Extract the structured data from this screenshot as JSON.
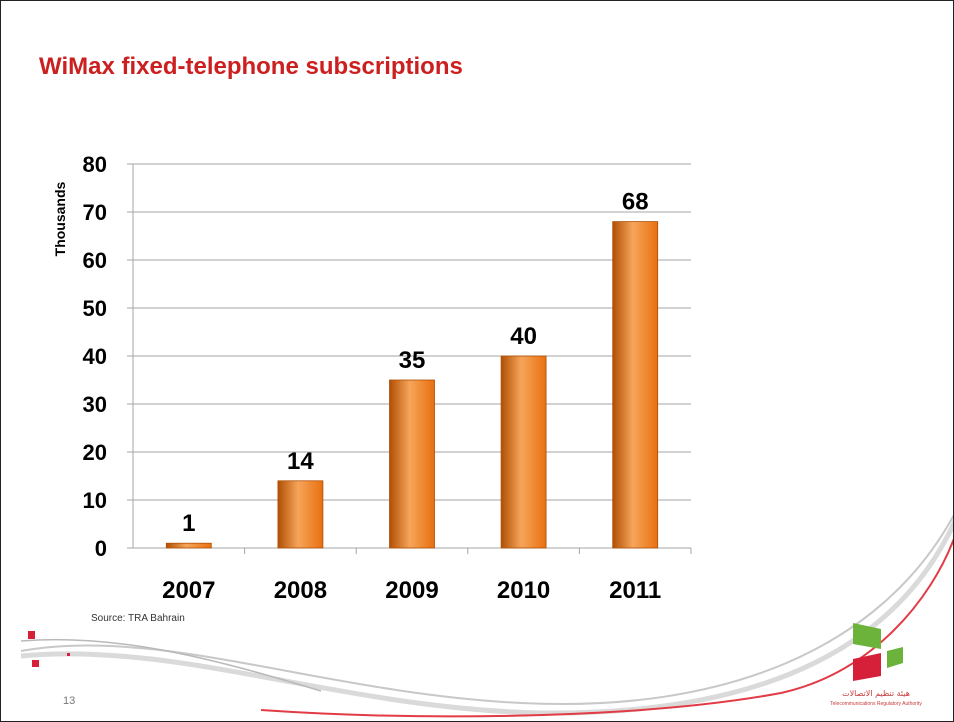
{
  "slide": {
    "title": "WiMax fixed-telephone subscriptions",
    "source": "Source: TRA Bahrain",
    "page_number": "13",
    "logo_text_ar": "هيئة تنظيم الاتصالات",
    "logo_text_en": "Telecommunications Regulatory Authority"
  },
  "colors": {
    "title": "#cc1f1f",
    "bar": "#e8700f",
    "bar_light": "#f6a55a",
    "bar_edge": "#b04f05",
    "gridline": "#a6a6a6",
    "logo_green": "#6bb33a",
    "logo_red": "#d6203a"
  },
  "chart_data": {
    "type": "bar",
    "title": "",
    "xlabel": "",
    "ylabel": "Thousands",
    "categories": [
      "2007",
      "2008",
      "2009",
      "2010",
      "2011"
    ],
    "values": [
      1,
      14,
      35,
      40,
      68
    ],
    "data_labels": [
      "1",
      "14",
      "35",
      "40",
      "68"
    ],
    "ylim": [
      0,
      80
    ],
    "y_ticks": [
      0,
      10,
      20,
      30,
      40,
      50,
      60,
      70,
      80
    ],
    "grid": true,
    "legend": false
  }
}
